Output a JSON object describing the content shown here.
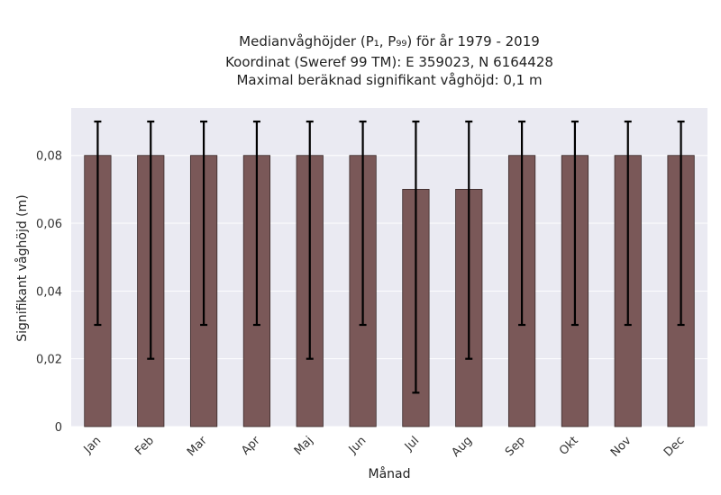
{
  "chart_data": {
    "type": "bar",
    "title_lines": [
      "Medianvåghöjder (P₁, P₉₉) för år 1979 - 2019",
      "Koordinat (Sweref 99 TM): E 359023, N 6164428",
      "Maximal beräknad signifikant våghöjd: 0,1 m"
    ],
    "xlabel": "Månad",
    "ylabel": "Signifikant våghöjd (m)",
    "categories": [
      "Jan",
      "Feb",
      "Mar",
      "Apr",
      "Maj",
      "Jun",
      "Jul",
      "Aug",
      "Sep",
      "Okt",
      "Nov",
      "Dec"
    ],
    "values": [
      0.08,
      0.08,
      0.08,
      0.08,
      0.08,
      0.08,
      0.07,
      0.07,
      0.08,
      0.08,
      0.08,
      0.08
    ],
    "error_low": [
      0.03,
      0.02,
      0.03,
      0.03,
      0.02,
      0.03,
      0.01,
      0.02,
      0.03,
      0.03,
      0.03,
      0.03
    ],
    "error_high": [
      0.09,
      0.09,
      0.09,
      0.09,
      0.09,
      0.09,
      0.09,
      0.09,
      0.09,
      0.09,
      0.09,
      0.09
    ],
    "ylim": [
      0,
      0.094
    ],
    "yticks": [
      0,
      0.02,
      0.04,
      0.06,
      0.08
    ],
    "ytick_labels": [
      "0",
      "0,02",
      "0,04",
      "0,06",
      "0,08"
    ],
    "grid": true,
    "colors": {
      "bar": "#7a5858",
      "bar_edge": "#3a2a2a",
      "error": "#000000",
      "background": "#eaeaf2",
      "grid": "#ffffff"
    }
  }
}
